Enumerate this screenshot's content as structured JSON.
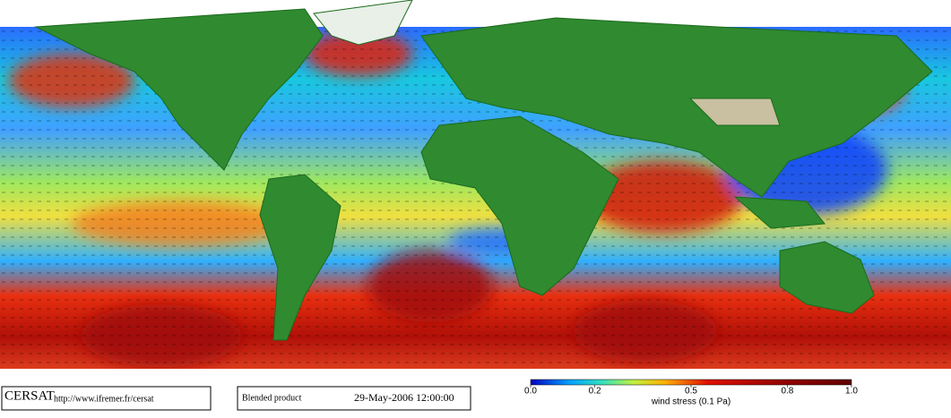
{
  "brand": "CERSAT",
  "url": "http://www.ifremer.fr/cersat",
  "product": "Blended product",
  "date": "29-May-2006 12:00:00",
  "colorbar": {
    "label": "wind stress (0.1 Pa)",
    "lim": [
      0,
      1
    ],
    "ticks": [
      {
        "value": 0,
        "label": "0.0"
      },
      0.2,
      0.5,
      0.8,
      {
        "value": 1,
        "label": "1.0"
      }
    ]
  }
}
